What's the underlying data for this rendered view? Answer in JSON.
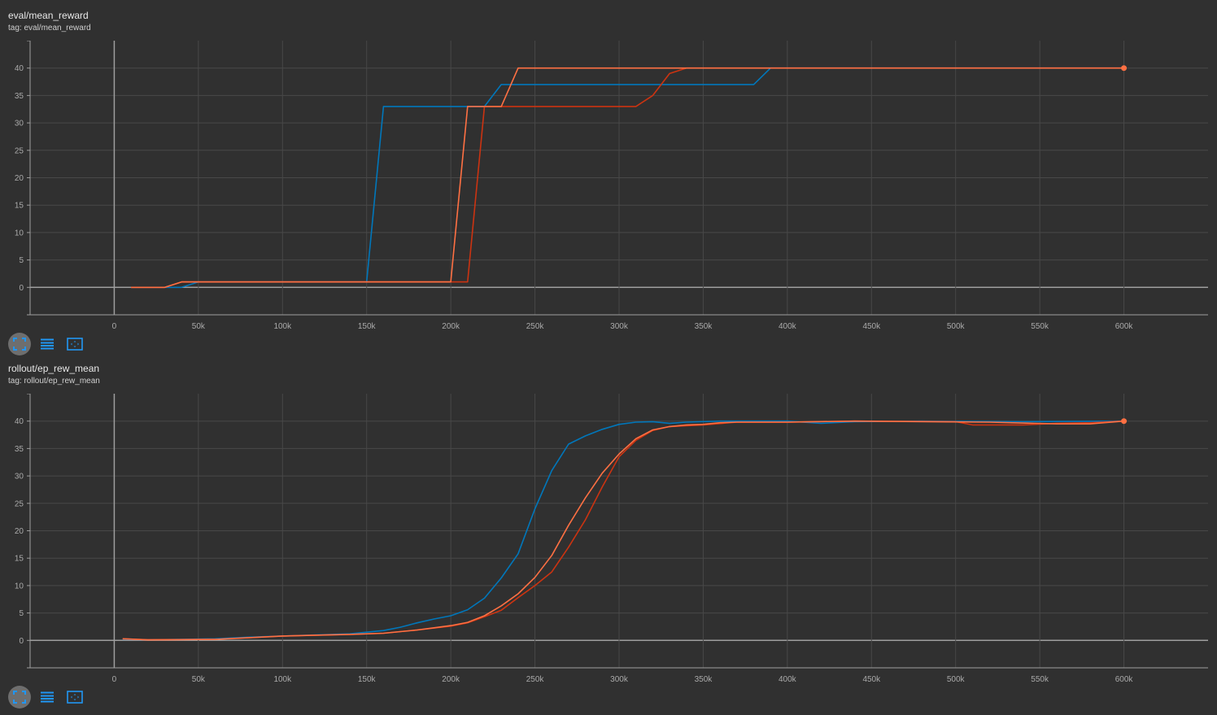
{
  "colors": {
    "background": "#303030",
    "grid": "#484848",
    "zero_axis": "#9e9e9e",
    "accent_icon": "#2196f3"
  },
  "toolbar_icons": [
    "fullscreen-icon",
    "toggle-log-scale-icon",
    "fit-domain-icon"
  ],
  "chart_data": [
    {
      "type": "line",
      "title": "eval/mean_reward",
      "subtitle": "tag: eval/mean_reward",
      "xlim": [
        -50000,
        650000
      ],
      "ylim": [
        -5,
        45
      ],
      "grid": true,
      "x_ticks": [
        "0",
        "50k",
        "100k",
        "150k",
        "200k",
        "250k",
        "300k",
        "350k",
        "400k",
        "450k",
        "500k",
        "550k",
        "600k"
      ],
      "x_tick_values": [
        0,
        50000,
        100000,
        150000,
        200000,
        250000,
        300000,
        350000,
        400000,
        450000,
        500000,
        550000,
        600000
      ],
      "y_ticks": [
        "0",
        "5",
        "10",
        "15",
        "20",
        "25",
        "30",
        "35",
        "40"
      ],
      "y_tick_values": [
        0,
        5,
        10,
        15,
        20,
        25,
        30,
        35,
        40
      ],
      "series": [
        {
          "color": "#0077bb",
          "points": [
            [
              10000,
              0
            ],
            [
              20000,
              0
            ],
            [
              30000,
              0
            ],
            [
              40000,
              0
            ],
            [
              50000,
              1
            ],
            [
              100000,
              1
            ],
            [
              150000,
              1
            ],
            [
              160000,
              33
            ],
            [
              220000,
              33
            ],
            [
              230000,
              37
            ],
            [
              380000,
              37
            ],
            [
              390000,
              40
            ],
            [
              600000,
              40
            ]
          ]
        },
        {
          "color": "#cc3311",
          "points": [
            [
              10000,
              0
            ],
            [
              30000,
              0
            ],
            [
              40000,
              1
            ],
            [
              210000,
              1
            ],
            [
              220000,
              33
            ],
            [
              310000,
              33
            ],
            [
              320000,
              35
            ],
            [
              330000,
              39
            ],
            [
              340000,
              40
            ],
            [
              600000,
              40
            ]
          ]
        },
        {
          "color": "#ff7043",
          "points": [
            [
              10000,
              0
            ],
            [
              30000,
              0
            ],
            [
              40000,
              1
            ],
            [
              200000,
              1
            ],
            [
              210000,
              33
            ],
            [
              230000,
              33
            ],
            [
              240000,
              40
            ],
            [
              600000,
              40
            ]
          ]
        }
      ],
      "end_marker": {
        "x": 600000,
        "y": 40,
        "color": "#ff7043"
      }
    },
    {
      "type": "line",
      "title": "rollout/ep_rew_mean",
      "subtitle": "tag: rollout/ep_rew_mean",
      "xlim": [
        -50000,
        650000
      ],
      "ylim": [
        -5,
        45
      ],
      "grid": true,
      "x_ticks": [
        "0",
        "50k",
        "100k",
        "150k",
        "200k",
        "250k",
        "300k",
        "350k",
        "400k",
        "450k",
        "500k",
        "550k",
        "600k"
      ],
      "x_tick_values": [
        0,
        50000,
        100000,
        150000,
        200000,
        250000,
        300000,
        350000,
        400000,
        450000,
        500000,
        550000,
        600000
      ],
      "y_ticks": [
        "0",
        "5",
        "10",
        "15",
        "20",
        "25",
        "30",
        "35",
        "40"
      ],
      "y_tick_values": [
        0,
        5,
        10,
        15,
        20,
        25,
        30,
        35,
        40
      ],
      "series": [
        {
          "color": "#0077bb",
          "points": [
            [
              5000,
              0.2
            ],
            [
              20000,
              0.1
            ],
            [
              40000,
              0.2
            ],
            [
              60000,
              0.3
            ],
            [
              80000,
              0.6
            ],
            [
              100000,
              0.8
            ],
            [
              120000,
              1.0
            ],
            [
              140000,
              1.2
            ],
            [
              150000,
              1.5
            ],
            [
              160000,
              1.8
            ],
            [
              170000,
              2.4
            ],
            [
              180000,
              3.2
            ],
            [
              190000,
              3.9
            ],
            [
              200000,
              4.5
            ],
            [
              210000,
              5.6
            ],
            [
              220000,
              7.7
            ],
            [
              230000,
              11.4
            ],
            [
              240000,
              15.8
            ],
            [
              250000,
              24
            ],
            [
              260000,
              31
            ],
            [
              270000,
              35.8
            ],
            [
              280000,
              37.3
            ],
            [
              290000,
              38.5
            ],
            [
              300000,
              39.4
            ],
            [
              310000,
              39.8
            ],
            [
              320000,
              39.9
            ],
            [
              330000,
              39.6
            ],
            [
              340000,
              39.8
            ],
            [
              360000,
              40
            ],
            [
              400000,
              40
            ],
            [
              420000,
              39.6
            ],
            [
              440000,
              39.9
            ],
            [
              480000,
              40
            ],
            [
              540000,
              39.9
            ],
            [
              600000,
              40
            ]
          ]
        },
        {
          "color": "#cc3311",
          "points": [
            [
              5000,
              0.3
            ],
            [
              20000,
              0.1
            ],
            [
              60000,
              0.2
            ],
            [
              100000,
              0.8
            ],
            [
              140000,
              1.1
            ],
            [
              160000,
              1.3
            ],
            [
              180000,
              1.9
            ],
            [
              200000,
              2.6
            ],
            [
              210000,
              3.2
            ],
            [
              220000,
              4.3
            ],
            [
              230000,
              5.5
            ],
            [
              240000,
              7.8
            ],
            [
              250000,
              10
            ],
            [
              260000,
              12.5
            ],
            [
              270000,
              17
            ],
            [
              280000,
              22
            ],
            [
              290000,
              28
            ],
            [
              300000,
              33.5
            ],
            [
              310000,
              36.5
            ],
            [
              320000,
              38.3
            ],
            [
              330000,
              39.0
            ],
            [
              350000,
              39.3
            ],
            [
              370000,
              39.8
            ],
            [
              400000,
              39.8
            ],
            [
              440000,
              40
            ],
            [
              500000,
              39.9
            ],
            [
              510000,
              39.3
            ],
            [
              540000,
              39.3
            ],
            [
              560000,
              39.6
            ],
            [
              580000,
              39.7
            ],
            [
              600000,
              40
            ]
          ]
        },
        {
          "color": "#ff7043",
          "points": [
            [
              5000,
              0.3
            ],
            [
              20000,
              0.1
            ],
            [
              60000,
              0.2
            ],
            [
              100000,
              0.8
            ],
            [
              140000,
              1.1
            ],
            [
              160000,
              1.3
            ],
            [
              170000,
              1.6
            ],
            [
              180000,
              1.9
            ],
            [
              190000,
              2.3
            ],
            [
              200000,
              2.7
            ],
            [
              210000,
              3.3
            ],
            [
              220000,
              4.5
            ],
            [
              230000,
              6.3
            ],
            [
              240000,
              8.5
            ],
            [
              250000,
              11.5
            ],
            [
              260000,
              15.5
            ],
            [
              270000,
              21
            ],
            [
              280000,
              26
            ],
            [
              290000,
              30.5
            ],
            [
              300000,
              34
            ],
            [
              310000,
              36.8
            ],
            [
              320000,
              38.4
            ],
            [
              330000,
              39.0
            ],
            [
              340000,
              39.3
            ],
            [
              350000,
              39.4
            ],
            [
              360000,
              39.7
            ],
            [
              370000,
              39.8
            ],
            [
              400000,
              39.8
            ],
            [
              440000,
              40
            ],
            [
              520000,
              39.8
            ],
            [
              560000,
              39.5
            ],
            [
              580000,
              39.5
            ],
            [
              600000,
              40
            ]
          ]
        }
      ],
      "end_marker": {
        "x": 600000,
        "y": 40,
        "color": "#ff7043"
      }
    }
  ]
}
